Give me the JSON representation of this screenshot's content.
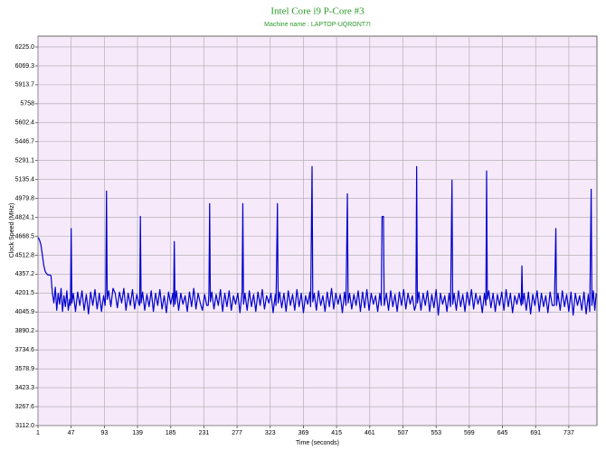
{
  "chart_data": {
    "type": "line",
    "title": "Intel Core i9 P-Core #3",
    "subtitle": "Machine name : LAPTOP-UQRONT7I",
    "x_label": "Time (seconds)",
    "y_label": "Clock Speed (MHz)",
    "color": "#0000cc",
    "background": "#f6e9fa",
    "grid": true,
    "xlim": [
      1,
      776
    ],
    "ylim": [
      3112,
      6314
    ],
    "xticks": [
      1,
      47,
      93,
      139,
      185,
      231,
      277,
      323,
      369,
      415,
      461,
      507,
      553,
      599,
      645,
      691,
      737
    ],
    "yticks": [
      {
        "value": 3112,
        "label": "3112.0"
      },
      3267.6,
      3423.3,
      3578.9,
      3734.6,
      3890.2,
      4045.9,
      4201.5,
      4357.2,
      4512.8,
      4668.5,
      4824.1,
      4979.8,
      5135.4,
      5291.1,
      5446.7,
      5602.4,
      5758,
      5913.7,
      6069.3,
      {
        "value": 6225,
        "label": "6225.0"
      }
    ],
    "x": [
      1,
      3,
      5,
      7,
      9,
      11,
      13,
      15,
      17,
      19,
      21,
      23,
      25,
      27,
      29,
      31,
      33,
      35,
      37,
      39,
      41,
      43,
      45,
      46,
      47,
      48,
      50,
      53,
      56,
      59,
      62,
      65,
      68,
      71,
      74,
      77,
      80,
      83,
      86,
      89,
      92,
      94,
      95,
      96,
      97,
      99,
      102,
      105,
      108,
      111,
      114,
      117,
      120,
      123,
      126,
      129,
      132,
      135,
      138,
      141,
      142,
      143,
      144,
      146,
      149,
      152,
      155,
      158,
      161,
      164,
      167,
      170,
      173,
      176,
      179,
      182,
      185,
      188,
      189,
      190,
      191,
      193,
      196,
      199,
      202,
      205,
      208,
      211,
      214,
      217,
      220,
      223,
      226,
      229,
      232,
      235,
      237,
      238,
      239,
      240,
      242,
      245,
      248,
      251,
      254,
      257,
      260,
      263,
      266,
      269,
      272,
      275,
      278,
      281,
      284,
      285,
      286,
      288,
      291,
      294,
      297,
      300,
      303,
      306,
      309,
      312,
      315,
      318,
      321,
      324,
      327,
      330,
      331,
      333,
      334,
      336,
      339,
      342,
      345,
      348,
      351,
      354,
      357,
      360,
      363,
      366,
      369,
      372,
      375,
      378,
      379,
      381,
      382,
      384,
      387,
      390,
      393,
      396,
      399,
      402,
      405,
      408,
      411,
      414,
      417,
      420,
      423,
      426,
      428,
      430,
      431,
      433,
      436,
      439,
      442,
      445,
      448,
      451,
      454,
      457,
      460,
      463,
      466,
      469,
      472,
      475,
      477,
      478,
      480,
      481,
      484,
      487,
      490,
      493,
      496,
      499,
      502,
      505,
      508,
      511,
      514,
      517,
      520,
      523,
      525,
      526,
      527,
      529,
      532,
      535,
      538,
      541,
      544,
      547,
      550,
      553,
      556,
      559,
      562,
      565,
      568,
      571,
      573,
      575,
      576,
      578,
      581,
      584,
      587,
      590,
      593,
      596,
      599,
      602,
      605,
      608,
      611,
      614,
      617,
      620,
      622,
      623,
      624,
      626,
      629,
      632,
      635,
      638,
      641,
      644,
      647,
      650,
      653,
      656,
      659,
      662,
      665,
      668,
      671,
      672,
      673,
      675,
      678,
      681,
      684,
      687,
      690,
      693,
      696,
      699,
      702,
      705,
      708,
      711,
      714,
      717,
      719,
      720,
      722,
      725,
      728,
      731,
      734,
      737,
      740,
      743,
      746,
      749,
      752,
      755,
      758,
      761,
      764,
      766,
      768,
      769,
      771,
      773,
      775
    ],
    "values": [
      4660,
      4640,
      4600,
      4520,
      4430,
      4380,
      4360,
      4350,
      4350,
      4345,
      4200,
      4120,
      4250,
      4060,
      4200,
      4110,
      4240,
      4050,
      4180,
      4090,
      4220,
      4060,
      4150,
      4100,
      4732,
      4120,
      4200,
      4050,
      4210,
      4100,
      4220,
      4060,
      4190,
      4030,
      4210,
      4100,
      4230,
      4070,
      4200,
      4050,
      4180,
      4100,
      4230,
      5040,
      4150,
      4220,
      4090,
      4240,
      4200,
      4080,
      4210,
      4120,
      4240,
      4060,
      4200,
      4100,
      4230,
      4070,
      4190,
      4110,
      4100,
      4832,
      4120,
      4210,
      4060,
      4190,
      4090,
      4220,
      4050,
      4200,
      4100,
      4230,
      4070,
      4180,
      4040,
      4210,
      4110,
      4200,
      4090,
      4625,
      4110,
      4220,
      4060,
      4200,
      4110,
      4180,
      4050,
      4210,
      4090,
      4240,
      4070,
      4200,
      4120,
      4060,
      4190,
      4100,
      4100,
      4200,
      4937,
      4130,
      4210,
      4070,
      4190,
      4100,
      4230,
      4050,
      4200,
      4090,
      4220,
      4060,
      4180,
      4110,
      4200,
      4040,
      4210,
      4937,
      4110,
      4200,
      4060,
      4220,
      4090,
      4190,
      4050,
      4210,
      4100,
      4230,
      4070,
      4180,
      4120,
      4200,
      4040,
      4190,
      4100,
      4937,
      4120,
      4210,
      4080,
      4200,
      4050,
      4220,
      4100,
      4190,
      4060,
      4230,
      4090,
      4200,
      4040,
      4180,
      4110,
      4210,
      4090,
      5242,
      4130,
      4200,
      4060,
      4220,
      4100,
      4180,
      4050,
      4210,
      4090,
      4240,
      4070,
      4200,
      4110,
      4190,
      4040,
      4210,
      4100,
      5018,
      4120,
      4200,
      4070,
      4190,
      4100,
      4220,
      4050,
      4210,
      4080,
      4230,
      4060,
      4200,
      4110,
      4180,
      4050,
      4200,
      4100,
      4830,
      4832,
      4100,
      4200,
      4060,
      4220,
      4090,
      4190,
      4050,
      4210,
      4100,
      4230,
      4070,
      4200,
      4110,
      4180,
      4060,
      4100,
      5242,
      4120,
      4210,
      4060,
      4200,
      4100,
      4220,
      4050,
      4190,
      4080,
      4230,
      4020,
      4200,
      4110,
      4180,
      4050,
      4200,
      4090,
      5130,
      4110,
      4200,
      4060,
      4220,
      4090,
      4190,
      4050,
      4210,
      4100,
      4230,
      4070,
      4200,
      4110,
      4180,
      4040,
      4200,
      4100,
      5205,
      4150,
      4220,
      4080,
      4200,
      4050,
      4190,
      4100,
      4210,
      4060,
      4230,
      4090,
      4200,
      4040,
      4180,
      4110,
      4200,
      4100,
      4424,
      4110,
      4200,
      4060,
      4210,
      4030,
      4190,
      4100,
      4220,
      4050,
      4200,
      4090,
      4180,
      4040,
      4210,
      4100,
      4100,
      4732,
      4100,
      4200,
      4060,
      4220,
      4090,
      4190,
      4050,
      4210,
      4020,
      4200,
      4100,
      4180,
      4060,
      4210,
      4030,
      4190,
      4050,
      5055,
      4100,
      4220,
      4060,
      4200
    ]
  }
}
